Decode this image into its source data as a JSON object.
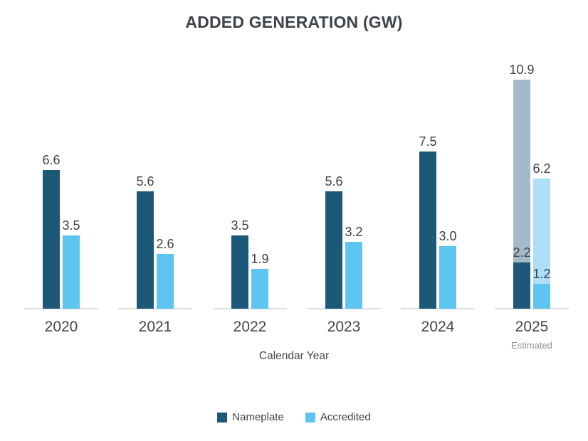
{
  "chart_data": {
    "type": "bar",
    "title": "ADDED GENERATION (GW)",
    "xlabel": "Calendar Year",
    "categories": [
      "2020",
      "2021",
      "2022",
      "2023",
      "2024",
      "2025"
    ],
    "category_notes": [
      "",
      "",
      "",
      "",
      "",
      "Estimated"
    ],
    "series": [
      {
        "name": "Nameplate",
        "color": "#1d5878",
        "values": [
          6.6,
          5.6,
          3.5,
          5.6,
          7.5,
          2.2
        ],
        "estimated_values": [
          null,
          null,
          null,
          null,
          null,
          10.9
        ],
        "estimated_color": "#a4bac8"
      },
      {
        "name": "Accredited",
        "color": "#5ec4f0",
        "values": [
          3.5,
          2.6,
          1.9,
          3.2,
          3.0,
          1.2
        ],
        "estimated_values": [
          null,
          null,
          null,
          null,
          null,
          6.2
        ],
        "estimated_color": "#aedff8"
      }
    ],
    "ylim": [
      0,
      11
    ],
    "grid": false,
    "legend_position": "bottom",
    "value_label_decimals": 1
  },
  "colors": {
    "title": "#3d4349",
    "value_label": "#3c4147",
    "axis_label": "#41464c",
    "note": "#8c9196",
    "baseline": "#e0e0e0",
    "background": "#ffffff"
  }
}
